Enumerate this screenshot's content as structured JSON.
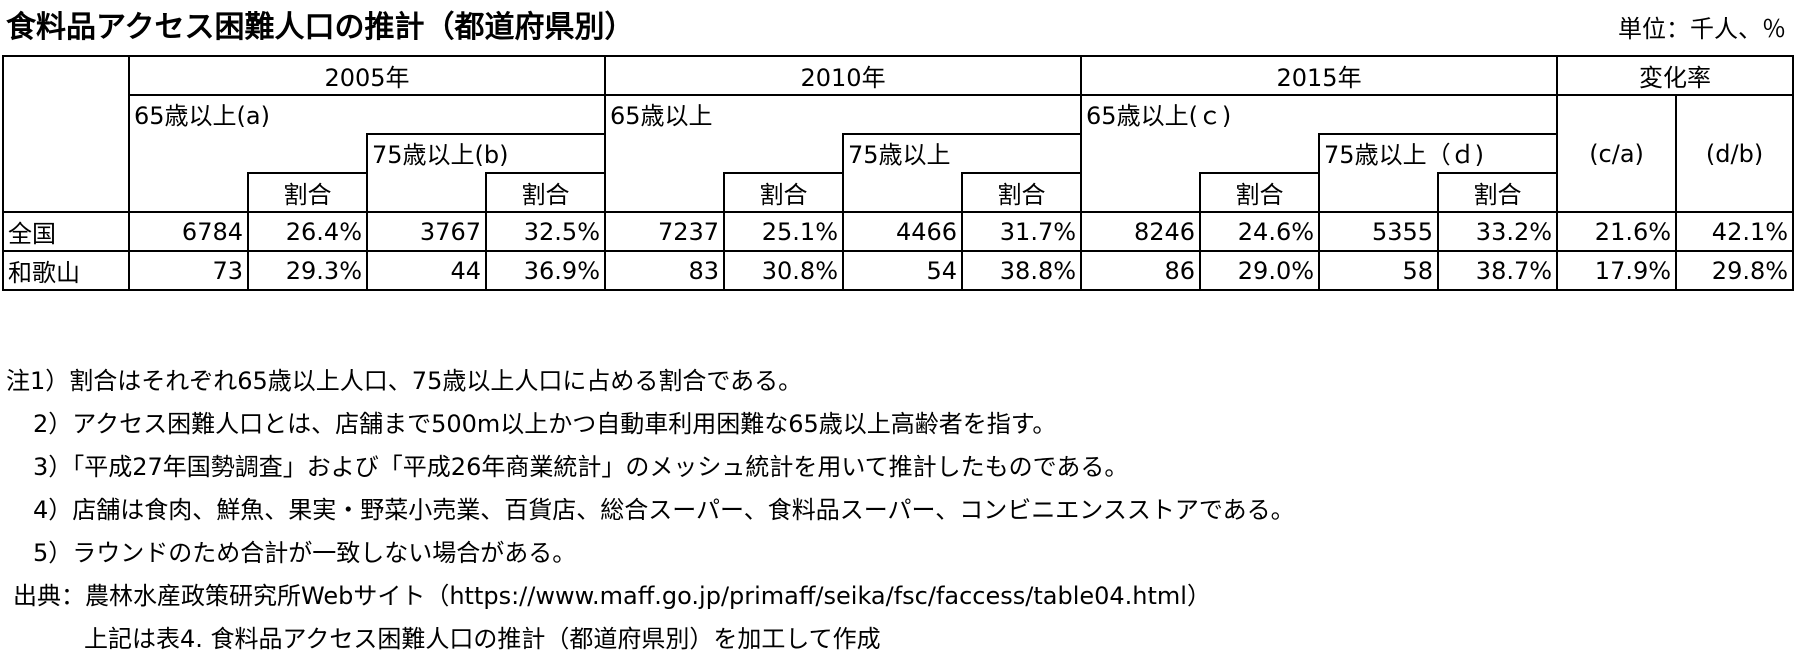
{
  "title": "食料品アクセス困難人口の推計（都道府県別）",
  "unit": "単位：千人、％",
  "headers": {
    "y2005": "2005年",
    "y2010": "2010年",
    "y2015": "2015年",
    "change": "変化率",
    "age65_a": "65歳以上(a)",
    "age75_b": "75歳以上(b)",
    "age65_2010": "65歳以上",
    "age75_2010": "75歳以上",
    "age65_c": "65歳以上(ｃ)",
    "age75_d": "75歳以上（ｄ)",
    "ratio": "割合",
    "ca": "(c/a)",
    "db": "(d/b)"
  },
  "rows": [
    {
      "name": "全国",
      "cells": [
        "6784",
        "26.4%",
        "3767",
        "32.5%",
        "7237",
        "25.1%",
        "4466",
        "31.7%",
        "8246",
        "24.6%",
        "5355",
        "33.2%",
        "21.6%",
        "42.1%"
      ]
    },
    {
      "name": "和歌山",
      "cells": [
        "73",
        "29.3%",
        "44",
        "36.9%",
        "83",
        "30.8%",
        "54",
        "38.8%",
        "86",
        "29.0%",
        "58",
        "38.7%",
        "17.9%",
        "29.8%"
      ]
    }
  ],
  "notes": [
    "注1）割合はそれぞれ65歳以上人口、75歳以上人口に占める割合である。",
    "2）アクセス困難人口とは、店舗まで500m以上かつ自動車利用困難な65歳以上高齢者を指す。",
    "3）「平成27年国勢調査」および「平成26年商業統計」のメッシュ統計を用いて推計したものである。",
    "4）店舗は食肉、鮮魚、果実・野菜小売業、百貨店、総合スーパー、食料品スーパー、コンビニエンスストアである。",
    "5）ラウンドのため合計が一致しない場合がある。"
  ],
  "source": "出典：農林水産政策研究所Webサイト（https://www.maff.go.jp/primaff/seika/fsc/faccess/table04.html）",
  "source_note": "上記は表4. 食料品アクセス困難人口の推計（都道府県別）を加工して作成"
}
